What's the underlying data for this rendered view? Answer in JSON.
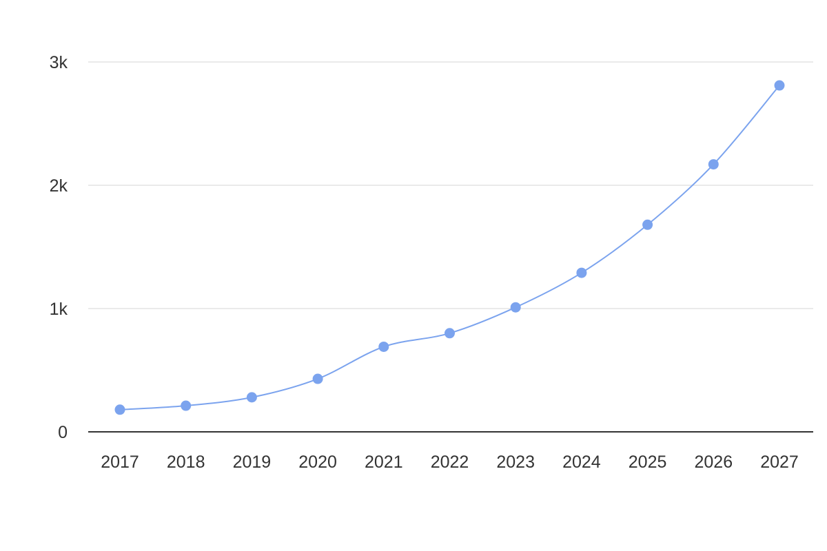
{
  "chart_data": {
    "type": "line",
    "categories": [
      "2017",
      "2018",
      "2019",
      "2020",
      "2021",
      "2022",
      "2023",
      "2024",
      "2025",
      "2026",
      "2027"
    ],
    "series": [
      {
        "values": [
          180,
          212,
          280,
          430,
          690,
          800,
          1010,
          1290,
          1680,
          2170,
          2810
        ]
      }
    ],
    "ylim": [
      0,
      3000
    ],
    "yticks": [
      0,
      1000,
      2000,
      3000
    ],
    "ytick_labels": [
      "0",
      "1k",
      "2k",
      "3k"
    ],
    "grid": true,
    "smooth": true,
    "markers": true,
    "colors": {
      "series": "#7ba3ee",
      "line": "#7ba3ee",
      "grid": "#dddddd",
      "baseline": "#333333",
      "text": "#333333"
    }
  }
}
